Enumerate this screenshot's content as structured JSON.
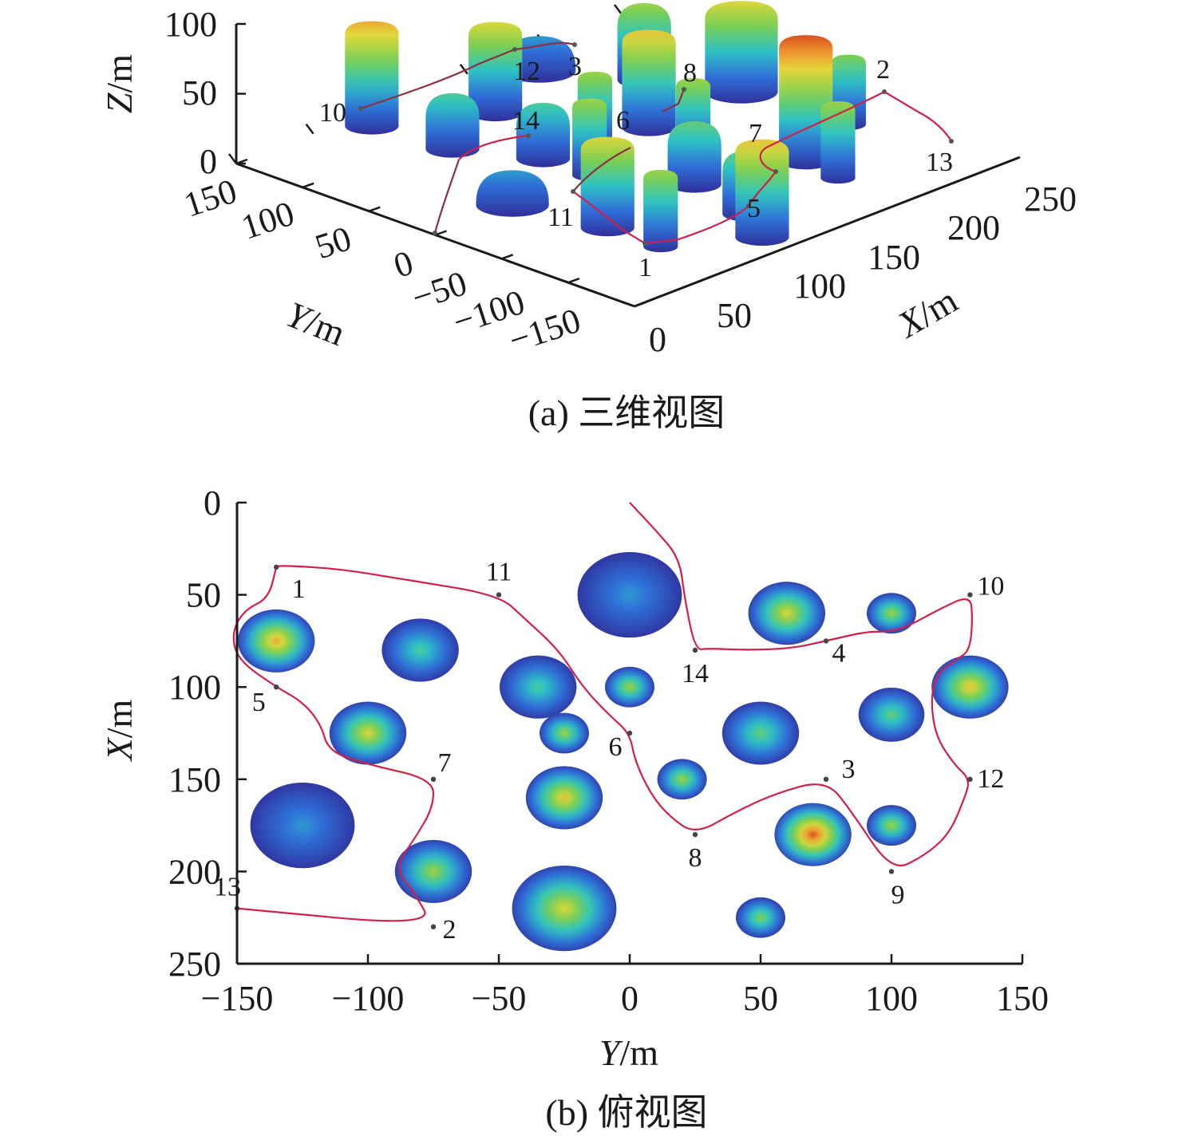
{
  "figure": {
    "caption_a": "(a) 三维视图",
    "caption_b": "(b) 俯视图"
  },
  "chart_data": [
    {
      "panel": "a",
      "type": "surface3d",
      "xlabel_var": "X",
      "xlabel_unit": "/m",
      "ylabel_var": "Y",
      "ylabel_unit": "/m",
      "zlabel_var": "Z",
      "zlabel_unit": "/m",
      "xlim": [
        0,
        250
      ],
      "ylim": [
        -150,
        150
      ],
      "zlim": [
        0,
        100
      ],
      "x_ticks": [
        "0",
        "50",
        "100",
        "150",
        "200",
        "250"
      ],
      "y_ticks": [
        "150",
        "100",
        "50",
        "0",
        "−50",
        "−100",
        "−150"
      ],
      "z_ticks": [
        "100",
        "50",
        "0"
      ],
      "colormap": [
        "#30309a",
        "#2f6fd8",
        "#2ec4c4",
        "#7ed04e",
        "#e8d83a",
        "#f07a2a",
        "#b01414"
      ],
      "waypoint_labels": [
        "10",
        "12",
        "3",
        "8",
        "2",
        "14",
        "6",
        "7",
        "13",
        "11",
        "5",
        "1"
      ],
      "path_color": "#d0204a"
    },
    {
      "panel": "b",
      "type": "heatmap",
      "xlabel_var": "Y",
      "xlabel_unit": "/m",
      "ylabel_var": "X",
      "ylabel_unit": "/m",
      "xlim": [
        -150,
        150
      ],
      "ylim": [
        0,
        250
      ],
      "x_ticks": [
        "−150",
        "−100",
        "−50",
        "0",
        "50",
        "100",
        "150"
      ],
      "y_ticks": [
        "0",
        "50",
        "100",
        "150",
        "200",
        "250"
      ],
      "obstacles": [
        {
          "y": -135,
          "x": 75,
          "r": 14,
          "h": 75
        },
        {
          "y": -80,
          "x": 80,
          "r": 14,
          "h": 40
        },
        {
          "y": -35,
          "x": 100,
          "r": 14,
          "h": 40
        },
        {
          "y": 0,
          "x": 50,
          "r": 19,
          "h": 25
        },
        {
          "y": 60,
          "x": 60,
          "r": 14,
          "h": 65
        },
        {
          "y": 100,
          "x": 60,
          "r": 9,
          "h": 55
        },
        {
          "y": 130,
          "x": 100,
          "r": 14,
          "h": 70
        },
        {
          "y": 100,
          "x": 115,
          "r": 12,
          "h": 45
        },
        {
          "y": 50,
          "x": 125,
          "r": 14,
          "h": 45
        },
        {
          "y": 0,
          "x": 100,
          "r": 9,
          "h": 55
        },
        {
          "y": -25,
          "x": 125,
          "r": 9,
          "h": 55
        },
        {
          "y": -100,
          "x": 125,
          "r": 14,
          "h": 65
        },
        {
          "y": 20,
          "x": 150,
          "r": 9,
          "h": 55
        },
        {
          "y": -25,
          "x": 160,
          "r": 14,
          "h": 70
        },
        {
          "y": -125,
          "x": 175,
          "r": 19,
          "h": 25
        },
        {
          "y": 70,
          "x": 180,
          "r": 14,
          "h": 90
        },
        {
          "y": 100,
          "x": 175,
          "r": 9,
          "h": 55
        },
        {
          "y": -75,
          "x": 200,
          "r": 14,
          "h": 55
        },
        {
          "y": -25,
          "x": 220,
          "r": 19,
          "h": 65
        },
        {
          "y": 50,
          "x": 225,
          "r": 9,
          "h": 50
        }
      ],
      "waypoints": [
        {
          "label": "1",
          "y": -135,
          "x": 35
        },
        {
          "label": "11",
          "y": -50,
          "x": 50
        },
        {
          "label": "5",
          "y": -135,
          "x": 100
        },
        {
          "label": "6",
          "y": 0,
          "x": 125
        },
        {
          "label": "14",
          "y": 25,
          "x": 80
        },
        {
          "label": "4",
          "y": 75,
          "x": 75
        },
        {
          "label": "10",
          "y": 130,
          "x": 50
        },
        {
          "label": "7",
          "y": -75,
          "x": 150
        },
        {
          "label": "3",
          "y": 75,
          "x": 150
        },
        {
          "label": "12",
          "y": 130,
          "x": 150
        },
        {
          "label": "8",
          "y": 25,
          "x": 180
        },
        {
          "label": "9",
          "y": 100,
          "x": 200
        },
        {
          "label": "13",
          "y": -150,
          "x": 220
        },
        {
          "label": "2",
          "y": -75,
          "x": 230
        }
      ],
      "path": [
        [
          -135,
          35
        ],
        [
          -133,
          34
        ],
        [
          -110,
          36
        ],
        [
          -85,
          42
        ],
        [
          -50,
          50
        ],
        [
          -40,
          63
        ],
        [
          -27,
          80
        ],
        [
          -18,
          100
        ],
        [
          -8,
          115
        ],
        [
          0,
          125
        ],
        [
          2,
          140
        ],
        [
          8,
          158
        ],
        [
          15,
          170
        ],
        [
          25,
          180
        ],
        [
          40,
          168
        ],
        [
          55,
          158
        ],
        [
          75,
          150
        ],
        [
          85,
          168
        ],
        [
          100,
          200
        ],
        [
          112,
          192
        ],
        [
          122,
          180
        ],
        [
          128,
          160
        ],
        [
          130,
          150
        ],
        [
          124,
          142
        ],
        [
          117,
          127
        ],
        [
          115,
          108
        ],
        [
          117,
          93
        ],
        [
          125,
          85
        ],
        [
          130,
          80
        ],
        [
          131,
          62
        ],
        [
          130,
          50
        ],
        [
          118,
          58
        ],
        [
          105,
          68
        ],
        [
          98,
          70
        ],
        [
          90,
          70
        ],
        [
          75,
          75
        ],
        [
          62,
          79
        ],
        [
          45,
          80
        ],
        [
          30,
          79
        ],
        [
          25,
          80
        ],
        [
          21,
          52
        ],
        [
          19,
          30
        ],
        [
          10,
          15
        ],
        [
          0,
          0
        ]
      ],
      "path_b": [
        [
          -150,
          220
        ],
        [
          -75,
          230
        ],
        [
          -82,
          212
        ],
        [
          -90,
          198
        ],
        [
          -82,
          182
        ],
        [
          -75,
          165
        ],
        [
          -75,
          150
        ],
        [
          -100,
          142
        ],
        [
          -115,
          135
        ],
        [
          -118,
          120
        ],
        [
          -125,
          108
        ],
        [
          -135,
          100
        ],
        [
          -150,
          85
        ],
        [
          -152,
          70
        ],
        [
          -147,
          58
        ],
        [
          -138,
          52
        ],
        [
          -135,
          35
        ]
      ],
      "path_color": "#d0204a"
    }
  ]
}
